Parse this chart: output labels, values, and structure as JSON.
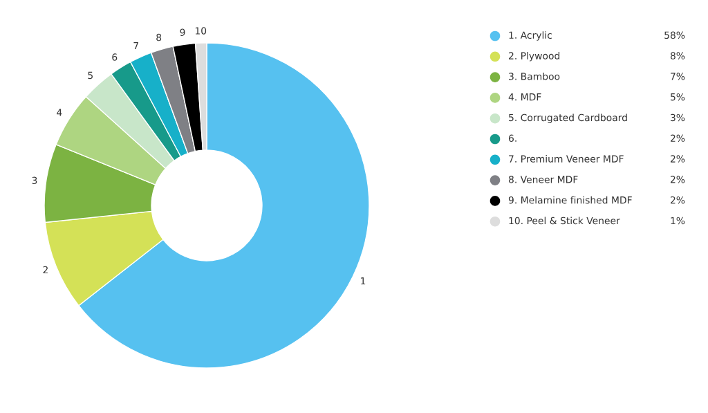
{
  "chart_data": {
    "type": "donut",
    "categories": [
      "1. Acrylic",
      "2. Plywood",
      "3. Bamboo",
      "4. MDF",
      "5. Corrugated Cardboard",
      "6.",
      "7. Premium Veneer MDF",
      "8. Veneer MDF",
      "9. Melamine finished MDF",
      "10. Peel & Stick Veneer"
    ],
    "values": [
      58,
      8,
      7,
      5,
      3,
      2,
      2,
      2,
      2,
      1
    ],
    "colors": [
      "#56c1f0",
      "#d4e157",
      "#7cb342",
      "#aed581",
      "#c8e6c9",
      "#179a8a",
      "#17b0c9",
      "#7f8085",
      "#000000",
      "#dddddd"
    ],
    "value_labels": [
      "58%",
      "8%",
      "7%",
      "5%",
      "3%",
      "2%",
      "2%",
      "2%",
      "2%",
      "1%"
    ],
    "annotations": [
      {
        "text": "1",
        "x": "1. Acrylic"
      },
      {
        "text": "2",
        "x": "2. Plywood"
      },
      {
        "text": "3",
        "x": "3. Bamboo"
      },
      {
        "text": "4",
        "x": "4. MDF"
      },
      {
        "text": "5",
        "x": "5. Corrugated Cardboard"
      },
      {
        "text": "6",
        "x": "6."
      },
      {
        "text": "7",
        "x": "7. Premium Veneer MDF"
      },
      {
        "text": "8",
        "x": "8. Veneer MDF"
      },
      {
        "text": "9",
        "x": "9. Melamine finished MDF"
      },
      {
        "text": "10",
        "x": "10. Peel & Stick Veneer"
      }
    ],
    "legend": "top right"
  }
}
